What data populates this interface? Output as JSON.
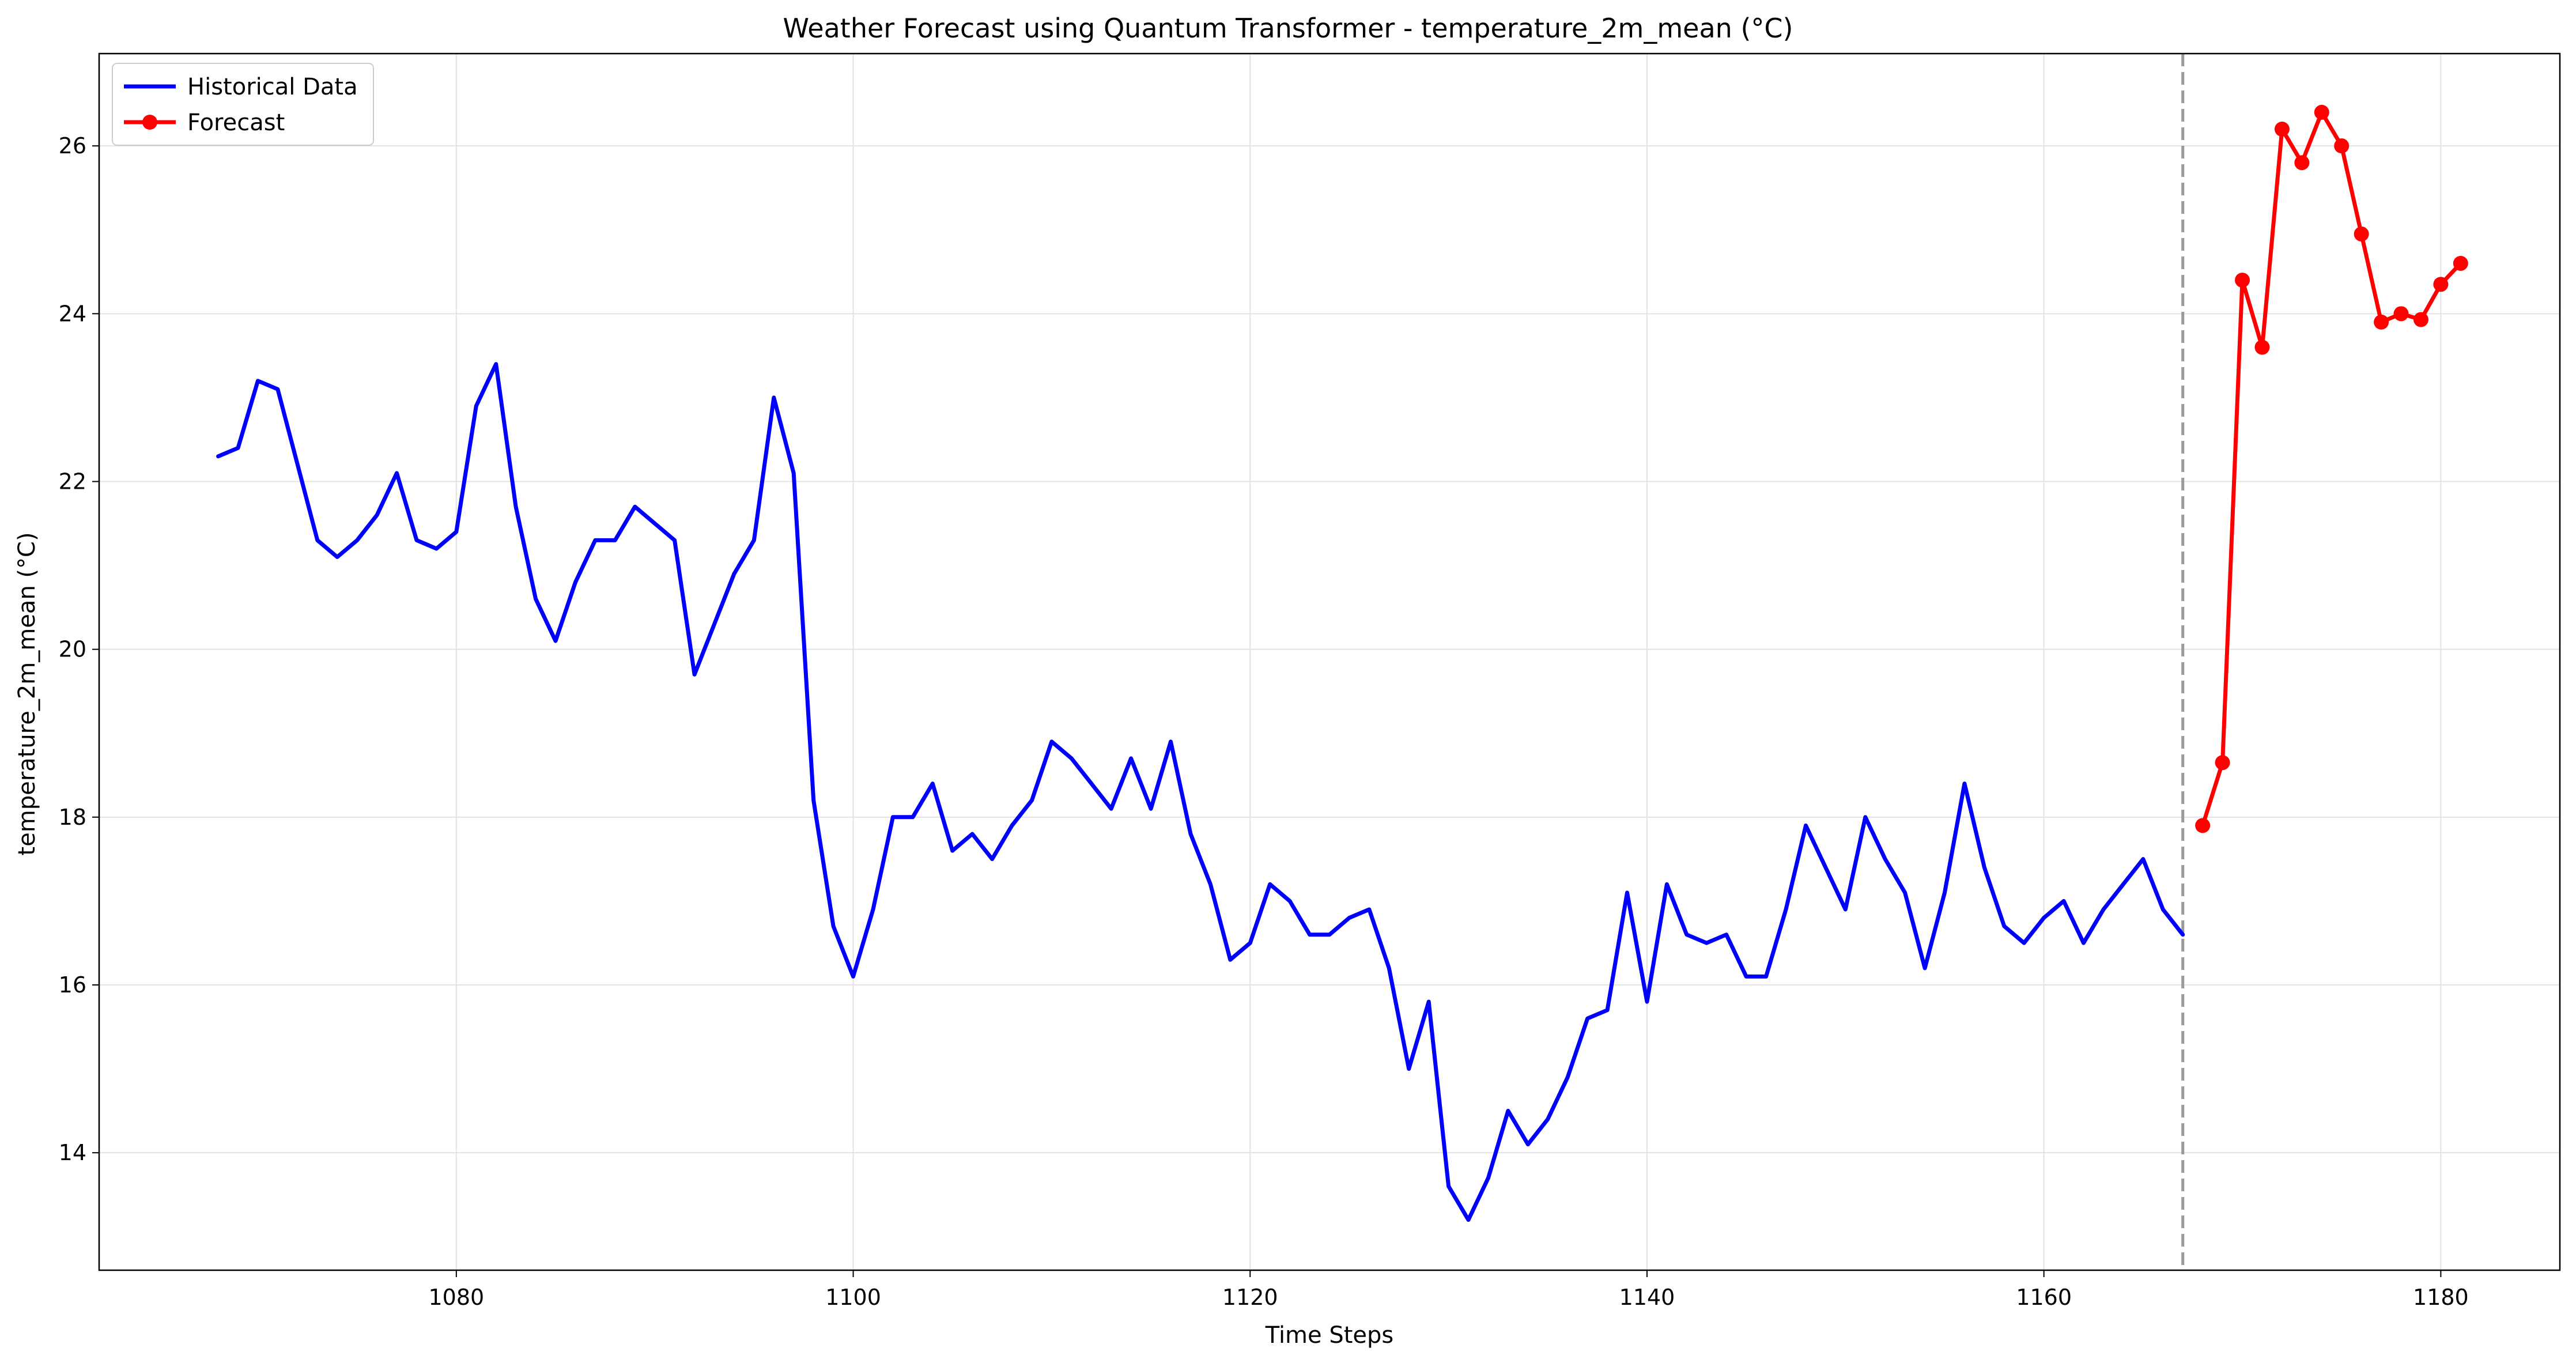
{
  "chart_data": {
    "type": "line",
    "title": "Weather Forecast using Quantum Transformer - temperature_2m_mean (°C)",
    "xlabel": "Time Steps",
    "ylabel": "temperature_2m_mean (°C)",
    "xlim": [
      1062,
      1186
    ],
    "ylim": [
      12.6,
      27.1
    ],
    "xticks": [
      1080,
      1100,
      1120,
      1140,
      1160,
      1180
    ],
    "yticks": [
      14,
      16,
      18,
      20,
      22,
      24,
      26
    ],
    "grid": true,
    "legend_position": "top-left",
    "forecast_start_marker": 1167,
    "series": [
      {
        "name": "Historical Data",
        "color": "#0000ff",
        "marker": false,
        "x": [
          1068,
          1069,
          1070,
          1071,
          1072,
          1073,
          1074,
          1075,
          1076,
          1077,
          1078,
          1079,
          1080,
          1081,
          1082,
          1083,
          1084,
          1085,
          1086,
          1087,
          1088,
          1089,
          1090,
          1091,
          1092,
          1093,
          1094,
          1095,
          1096,
          1097,
          1098,
          1099,
          1100,
          1101,
          1102,
          1103,
          1104,
          1105,
          1106,
          1107,
          1108,
          1109,
          1110,
          1111,
          1112,
          1113,
          1114,
          1115,
          1116,
          1117,
          1118,
          1119,
          1120,
          1121,
          1122,
          1123,
          1124,
          1125,
          1126,
          1127,
          1128,
          1129,
          1130,
          1131,
          1132,
          1133,
          1134,
          1135,
          1136,
          1137,
          1138,
          1139,
          1140,
          1141,
          1142,
          1143,
          1144,
          1145,
          1146,
          1147,
          1148,
          1149,
          1150,
          1151,
          1152,
          1153,
          1154,
          1155,
          1156,
          1157,
          1158,
          1159,
          1160,
          1161,
          1162,
          1163,
          1164,
          1165,
          1166,
          1167
        ],
        "values": [
          22.3,
          22.4,
          23.2,
          23.1,
          22.2,
          21.3,
          21.1,
          21.3,
          21.6,
          22.1,
          21.3,
          21.2,
          21.4,
          22.9,
          23.4,
          21.7,
          20.6,
          20.1,
          20.8,
          21.3,
          21.3,
          21.7,
          21.5,
          21.3,
          19.7,
          20.3,
          20.9,
          21.3,
          23.0,
          22.1,
          18.2,
          16.7,
          16.1,
          16.9,
          18.0,
          18.0,
          18.4,
          17.6,
          17.8,
          17.5,
          17.9,
          18.2,
          18.9,
          18.7,
          18.4,
          18.1,
          18.7,
          18.1,
          18.9,
          17.8,
          17.2,
          16.3,
          16.5,
          17.2,
          17.0,
          16.6,
          16.6,
          16.8,
          16.9,
          16.2,
          15.0,
          15.8,
          13.6,
          13.2,
          13.7,
          14.5,
          14.1,
          14.4,
          14.9,
          15.6,
          15.7,
          17.1,
          15.8,
          17.2,
          16.6,
          16.5,
          16.6,
          16.1,
          16.1,
          16.9,
          17.9,
          17.4,
          16.9,
          18.0,
          17.5,
          17.1,
          16.2,
          17.1,
          18.4,
          17.4,
          16.7,
          16.5,
          16.8,
          17.0,
          16.5,
          16.9,
          17.2,
          17.5,
          16.9,
          16.6
        ]
      },
      {
        "name": "Forecast",
        "color": "#ff0000",
        "marker": true,
        "x": [
          1168,
          1169,
          1170,
          1171,
          1172,
          1173,
          1174,
          1175,
          1176,
          1177,
          1178,
          1179,
          1180,
          1181
        ],
        "values": [
          17.9,
          18.65,
          24.4,
          23.6,
          26.2,
          25.8,
          26.4,
          26.0,
          24.95,
          23.9,
          24.0,
          23.93,
          24.35,
          24.6
        ]
      }
    ]
  }
}
